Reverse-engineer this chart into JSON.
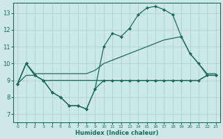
{
  "xlabel": "Humidex (Indice chaleur)",
  "bg_color": "#cce8e8",
  "line_color": "#1a6b5a",
  "grid_color": "#aacccc",
  "xlim": [
    -0.5,
    23.5
  ],
  "ylim": [
    6.5,
    13.6
  ],
  "x": [
    0,
    1,
    2,
    3,
    4,
    5,
    6,
    7,
    8,
    9,
    10,
    11,
    12,
    13,
    14,
    15,
    16,
    17,
    18,
    19,
    20,
    21,
    22,
    23
  ],
  "curve_main": [
    8.8,
    10.0,
    9.3,
    9.0,
    8.3,
    8.0,
    7.5,
    7.5,
    7.3,
    8.5,
    11.0,
    11.8,
    11.6,
    12.1,
    12.9,
    13.3,
    13.4,
    13.2,
    12.9,
    11.6,
    10.6,
    10.0,
    9.3,
    9.3
  ],
  "curve_upper": [
    8.8,
    10.0,
    9.4,
    9.4,
    9.4,
    9.4,
    9.4,
    9.4,
    9.4,
    9.6,
    10.0,
    10.2,
    10.4,
    10.6,
    10.8,
    11.0,
    11.2,
    11.4,
    11.5,
    11.6,
    10.6,
    10.0,
    9.4,
    9.4
  ],
  "curve_lower": [
    8.8,
    9.3,
    9.3,
    9.0,
    9.0,
    9.0,
    9.0,
    9.0,
    9.0,
    9.0,
    9.0,
    9.0,
    9.0,
    9.0,
    9.0,
    9.0,
    9.0,
    9.0,
    9.0,
    9.0,
    9.0,
    9.0,
    9.3,
    9.3
  ],
  "curve_bot": [
    8.8,
    10.0,
    9.3,
    9.0,
    8.3,
    8.0,
    7.5,
    7.5,
    7.3,
    8.5,
    9.0,
    9.0,
    9.0,
    9.0,
    9.0,
    9.0,
    9.0,
    9.0,
    9.0,
    9.0,
    9.0,
    9.0,
    9.3,
    9.3
  ],
  "yticks": [
    7,
    8,
    9,
    10,
    11,
    12,
    13
  ],
  "xticks": [
    0,
    1,
    2,
    3,
    4,
    5,
    6,
    7,
    8,
    9,
    10,
    11,
    12,
    13,
    14,
    15,
    16,
    17,
    18,
    19,
    20,
    21,
    22,
    23
  ]
}
